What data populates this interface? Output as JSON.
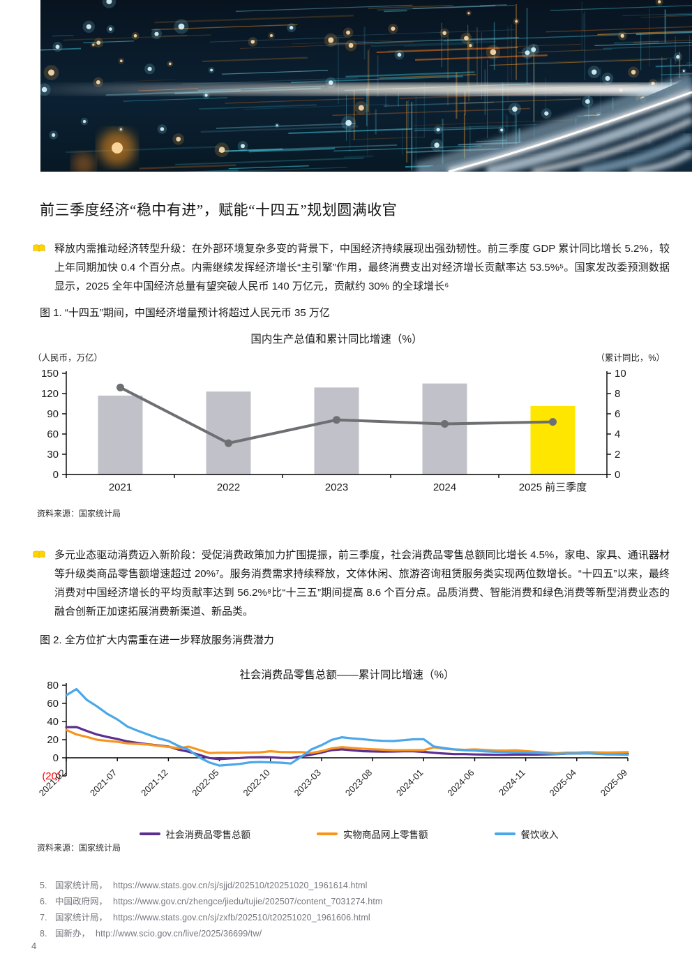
{
  "page": {
    "number": "4"
  },
  "colors": {
    "ey_yellow": "#FFE600",
    "bar_gray": "#C1C1C9",
    "gdp_line_gray": "#6E6F72",
    "retail_purple": "#5B2E91",
    "online_orange": "#F7941E",
    "catering_blue": "#4AA7E9",
    "negative_red": "#FF0000"
  },
  "article": {
    "title": "前三季度经济“稳中有进”，赋能“十四五”规划圆满收官",
    "paragraphs": [
      {
        "text": "释放内需推动经济转型升级：在外部环境复杂多变的背景下，中国经济持续展现出强劲韧性。前三季度 GDP 累计同比增长 5.2%，较上年同期加快 0.4 个百分点。内需继续发挥经济增长“主引擎”作用，最终消费支出对经济增长贡献率达 53.5%⁵。国家发改委预测数据显示，2025 全年中国经济总量有望突破人民币 140 万亿元，贡献约 30% 的全球增长⁶"
      },
      {
        "text": "多元业态驱动消费迈入新阶段：受促消费政策加力扩围提振，前三季度，社会消费品零售总额同比增长 4.5%，家电、家具、通讯器材等升级类商品零售额增速超过 20%⁷。服务消费需求持续释放，文体休闲、旅游咨询租赁服务类实现两位数增长。“十四五”以来，最终消费对中国经济增长的平均贡献率达到 56.2%⁸比“十三五”期间提高 8.6 个百分点。品质消费、智能消费和绿色消费等新型消费业态的融合创新正加速拓展消费新渠道、新品类。"
      }
    ],
    "figure1_caption": "图 1. “十四五”期间，中国经济增量预计将超过人民元币 35 万亿",
    "figure2_caption": "图 2. 全方位扩大内需重在进一步释放服务消费潜力"
  },
  "footnotes": [
    {
      "num": "5.",
      "source": "国家统计局，",
      "url": "https://www.stats.gov.cn/sj/sjjd/202510/t20251020_1961614.html"
    },
    {
      "num": "6.",
      "source": "中国政府网，",
      "url": "https://www.gov.cn/zhengce/jiedu/tujie/202507/content_7031274.htm"
    },
    {
      "num": "7.",
      "source": "国家统计局，",
      "url": "https://www.stats.gov.cn/sj/zxfb/202510/t20251020_1961606.html"
    },
    {
      "num": "8.",
      "source": "国新办，",
      "url": "http://www.scio.gov.cn/live/2025/36699/tw/"
    }
  ],
  "chart_data": [
    {
      "type": "bar",
      "subtype": "bar+line dual axis",
      "title": "国内生产总值和累计同比增速（%）",
      "left_axis_label": "（人民币，万亿）",
      "right_axis_label": "（累计同比，%）",
      "categories": [
        "2021",
        "2022",
        "2023",
        "2024",
        "2025 前三季度"
      ],
      "left_ticks": [
        0,
        30,
        60,
        90,
        120,
        150
      ],
      "right_ticks": [
        0,
        2,
        4,
        6,
        8,
        10
      ],
      "left_ylim": [
        0,
        150
      ],
      "right_ylim": [
        0,
        10
      ],
      "bar_series": {
        "name": "国内生产总值",
        "values": [
          117,
          123,
          129,
          134.9,
          101.5
        ],
        "colors": [
          "#C1C1C9",
          "#C1C1C9",
          "#C1C1C9",
          "#C1C1C9",
          "#FFE600"
        ]
      },
      "line_series": {
        "name": "累计同比增速",
        "values": [
          8.6,
          3.1,
          5.4,
          5.0,
          5.2
        ],
        "color": "#6E6F72"
      },
      "source": "资料来源：国家统计局"
    },
    {
      "type": "line",
      "title": "社会消费品零售总额——累计同比增速（%）",
      "x_tick_labels": [
        "2021-02",
        "2021-07",
        "2021-12",
        "2022-05",
        "2022-10",
        "2023-03",
        "2023-08",
        "2024-01",
        "2024-06",
        "2024-11",
        "2025-04",
        "2025-09"
      ],
      "x_tick_indices": [
        0,
        5,
        10,
        15,
        20,
        25,
        30,
        35,
        40,
        45,
        50,
        55
      ],
      "n_points": 56,
      "y_ticks": [
        80,
        60,
        40,
        20,
        0
      ],
      "y_tick_negative_label": "(20)",
      "ylim": [
        -20,
        80
      ],
      "grid": false,
      "legend_position": "bottom",
      "series": [
        {
          "name": "社会消费品零售总额",
          "color": "#5B2E91",
          "values": [
            33.8,
            33.9,
            29.6,
            25.7,
            23.0,
            20.7,
            18.1,
            16.4,
            14.9,
            13.7,
            12.5,
            9.0,
            6.7,
            3.3,
            -0.2,
            -1.5,
            -0.7,
            -0.2,
            0.5,
            0.7,
            0.6,
            -0.1,
            -0.2,
            1.5,
            3.5,
            5.8,
            8.5,
            9.3,
            8.2,
            7.3,
            7.0,
            6.8,
            6.9,
            7.2,
            7.2,
            6.5,
            5.5,
            4.7,
            4.1,
            4.1,
            3.7,
            3.5,
            3.4,
            3.3,
            3.5,
            3.5,
            3.5,
            3.7,
            4.0,
            4.6,
            4.7,
            5.0,
            5.0,
            4.8,
            4.6,
            4.5
          ]
        },
        {
          "name": "实物商品网上零售额",
          "color": "#F7941E",
          "values": [
            30.6,
            25.8,
            23.1,
            19.9,
            18.7,
            17.6,
            15.9,
            15.2,
            14.6,
            13.2,
            12.0,
            10.5,
            12.3,
            8.8,
            5.2,
            5.6,
            5.6,
            5.7,
            5.8,
            6.1,
            7.2,
            6.4,
            6.2,
            6.3,
            5.3,
            7.3,
            10.4,
            11.8,
            10.8,
            10.0,
            9.5,
            8.9,
            8.4,
            8.3,
            8.4,
            8.4,
            11.5,
            10.0,
            9.2,
            8.8,
            9.2,
            8.7,
            8.1,
            7.9,
            8.3,
            7.4,
            6.5,
            5.8,
            5.0,
            5.7,
            5.8,
            6.3,
            6.0,
            5.8,
            6.0,
            6.2
          ]
        },
        {
          "name": "餐饮收入",
          "color": "#4AA7E9",
          "values": [
            68.9,
            75.8,
            63.9,
            56.8,
            48.6,
            42.3,
            34.4,
            29.8,
            25.7,
            21.6,
            18.6,
            13.0,
            8.9,
            0.5,
            -5.1,
            -8.5,
            -7.7,
            -6.8,
            -5.0,
            -4.6,
            -5.0,
            -5.4,
            -6.3,
            1.0,
            9.2,
            13.9,
            19.8,
            22.6,
            21.4,
            20.5,
            19.4,
            18.7,
            18.5,
            19.4,
            20.4,
            20.5,
            12.5,
            10.8,
            9.3,
            8.4,
            7.9,
            7.1,
            6.6,
            6.2,
            5.9,
            5.7,
            5.3,
            4.8,
            4.3,
            4.7,
            4.8,
            5.0,
            4.3,
            3.8,
            3.6,
            3.3
          ]
        }
      ],
      "source": "资料来源：国家统计局"
    }
  ]
}
